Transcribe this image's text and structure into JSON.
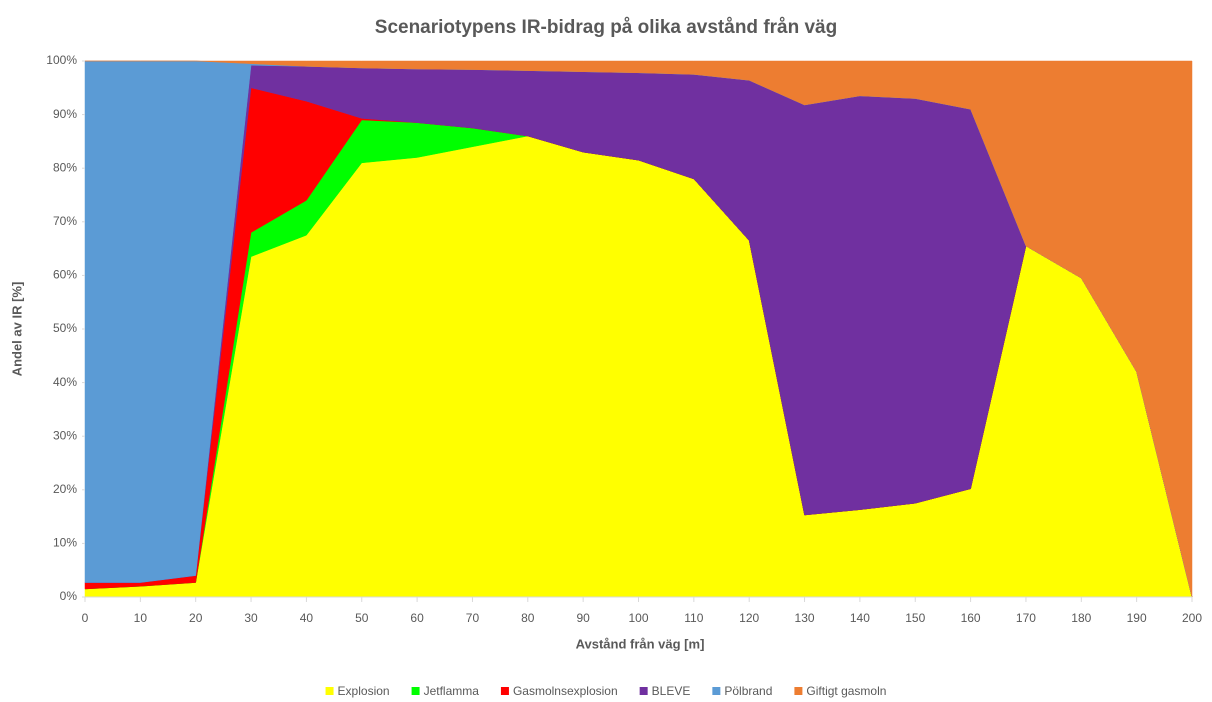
{
  "chart_data": {
    "type": "stacked_area",
    "title": "Scenariotypens IR-bidrag på olika avstånd från väg",
    "x_label": "Avstånd från väg [m]",
    "y_label": "Andel av IR [%]",
    "x": [
      0,
      10,
      20,
      30,
      40,
      50,
      60,
      70,
      80,
      90,
      100,
      110,
      120,
      130,
      140,
      150,
      160,
      170,
      180,
      190,
      200
    ],
    "xlim": [
      0,
      200
    ],
    "xticks": [
      0,
      10,
      20,
      30,
      40,
      50,
      60,
      70,
      80,
      90,
      100,
      110,
      120,
      130,
      140,
      150,
      160,
      170,
      180,
      190,
      200
    ],
    "ylim": [
      0,
      100
    ],
    "yticks": [
      {
        "value": 0,
        "label": "0%"
      },
      {
        "value": 10,
        "label": "10%"
      },
      {
        "value": 20,
        "label": "20%"
      },
      {
        "value": 30,
        "label": "30%"
      },
      {
        "value": 40,
        "label": "40%"
      },
      {
        "value": 50,
        "label": "50%"
      },
      {
        "value": 60,
        "label": "60%"
      },
      {
        "value": 70,
        "label": "70%"
      },
      {
        "value": 80,
        "label": "80%"
      },
      {
        "value": 90,
        "label": "90%"
      },
      {
        "value": 100,
        "label": "100%"
      }
    ],
    "legend": "bottom",
    "series": [
      {
        "name": "Explosion",
        "color": "#ffff00",
        "values": [
          1.5,
          2,
          2.7,
          63.5,
          67.5,
          81,
          82,
          84,
          86,
          83,
          81.5,
          78,
          66.5,
          15.3,
          16.3,
          17.5,
          20.2,
          65.5,
          59.5,
          42,
          0
        ]
      },
      {
        "name": "Jetflamma",
        "color": "#00ff00",
        "values": [
          0,
          0,
          0,
          4.5,
          6.5,
          8,
          6.5,
          3.5,
          0,
          0,
          0,
          0,
          0,
          0,
          0,
          0,
          0,
          0,
          0,
          0,
          0
        ]
      },
      {
        "name": "Gasmolnsexplosion",
        "color": "#ff0000",
        "values": [
          1.2,
          0.7,
          1.3,
          27,
          18.5,
          0.3,
          0,
          0,
          0,
          0,
          0,
          0,
          0,
          0,
          0,
          0,
          0,
          0,
          0,
          0,
          0
        ]
      },
      {
        "name": "BLEVE",
        "color": "#7030a0",
        "values": [
          0,
          0,
          0,
          4.2,
          6.5,
          9.4,
          10,
          10.9,
          12.2,
          15,
          16.3,
          19.5,
          29.9,
          76.5,
          77.2,
          75.5,
          70.8,
          0,
          0,
          0,
          0
        ]
      },
      {
        "name": "Pölbrand",
        "color": "#5b9bd5",
        "values": [
          97.3,
          97.3,
          96,
          0.3,
          0,
          0,
          0,
          0,
          0,
          0,
          0,
          0,
          0,
          0,
          0,
          0,
          0,
          0,
          0,
          0,
          0
        ]
      },
      {
        "name": "Giftigt gasmoln",
        "color": "#ed7d31",
        "values": [
          0,
          0,
          0,
          0.5,
          1,
          1.3,
          1.5,
          1.6,
          1.8,
          2,
          2.2,
          2.5,
          3.6,
          8.2,
          6.5,
          7,
          9,
          34.5,
          40.5,
          58,
          100
        ]
      }
    ]
  }
}
